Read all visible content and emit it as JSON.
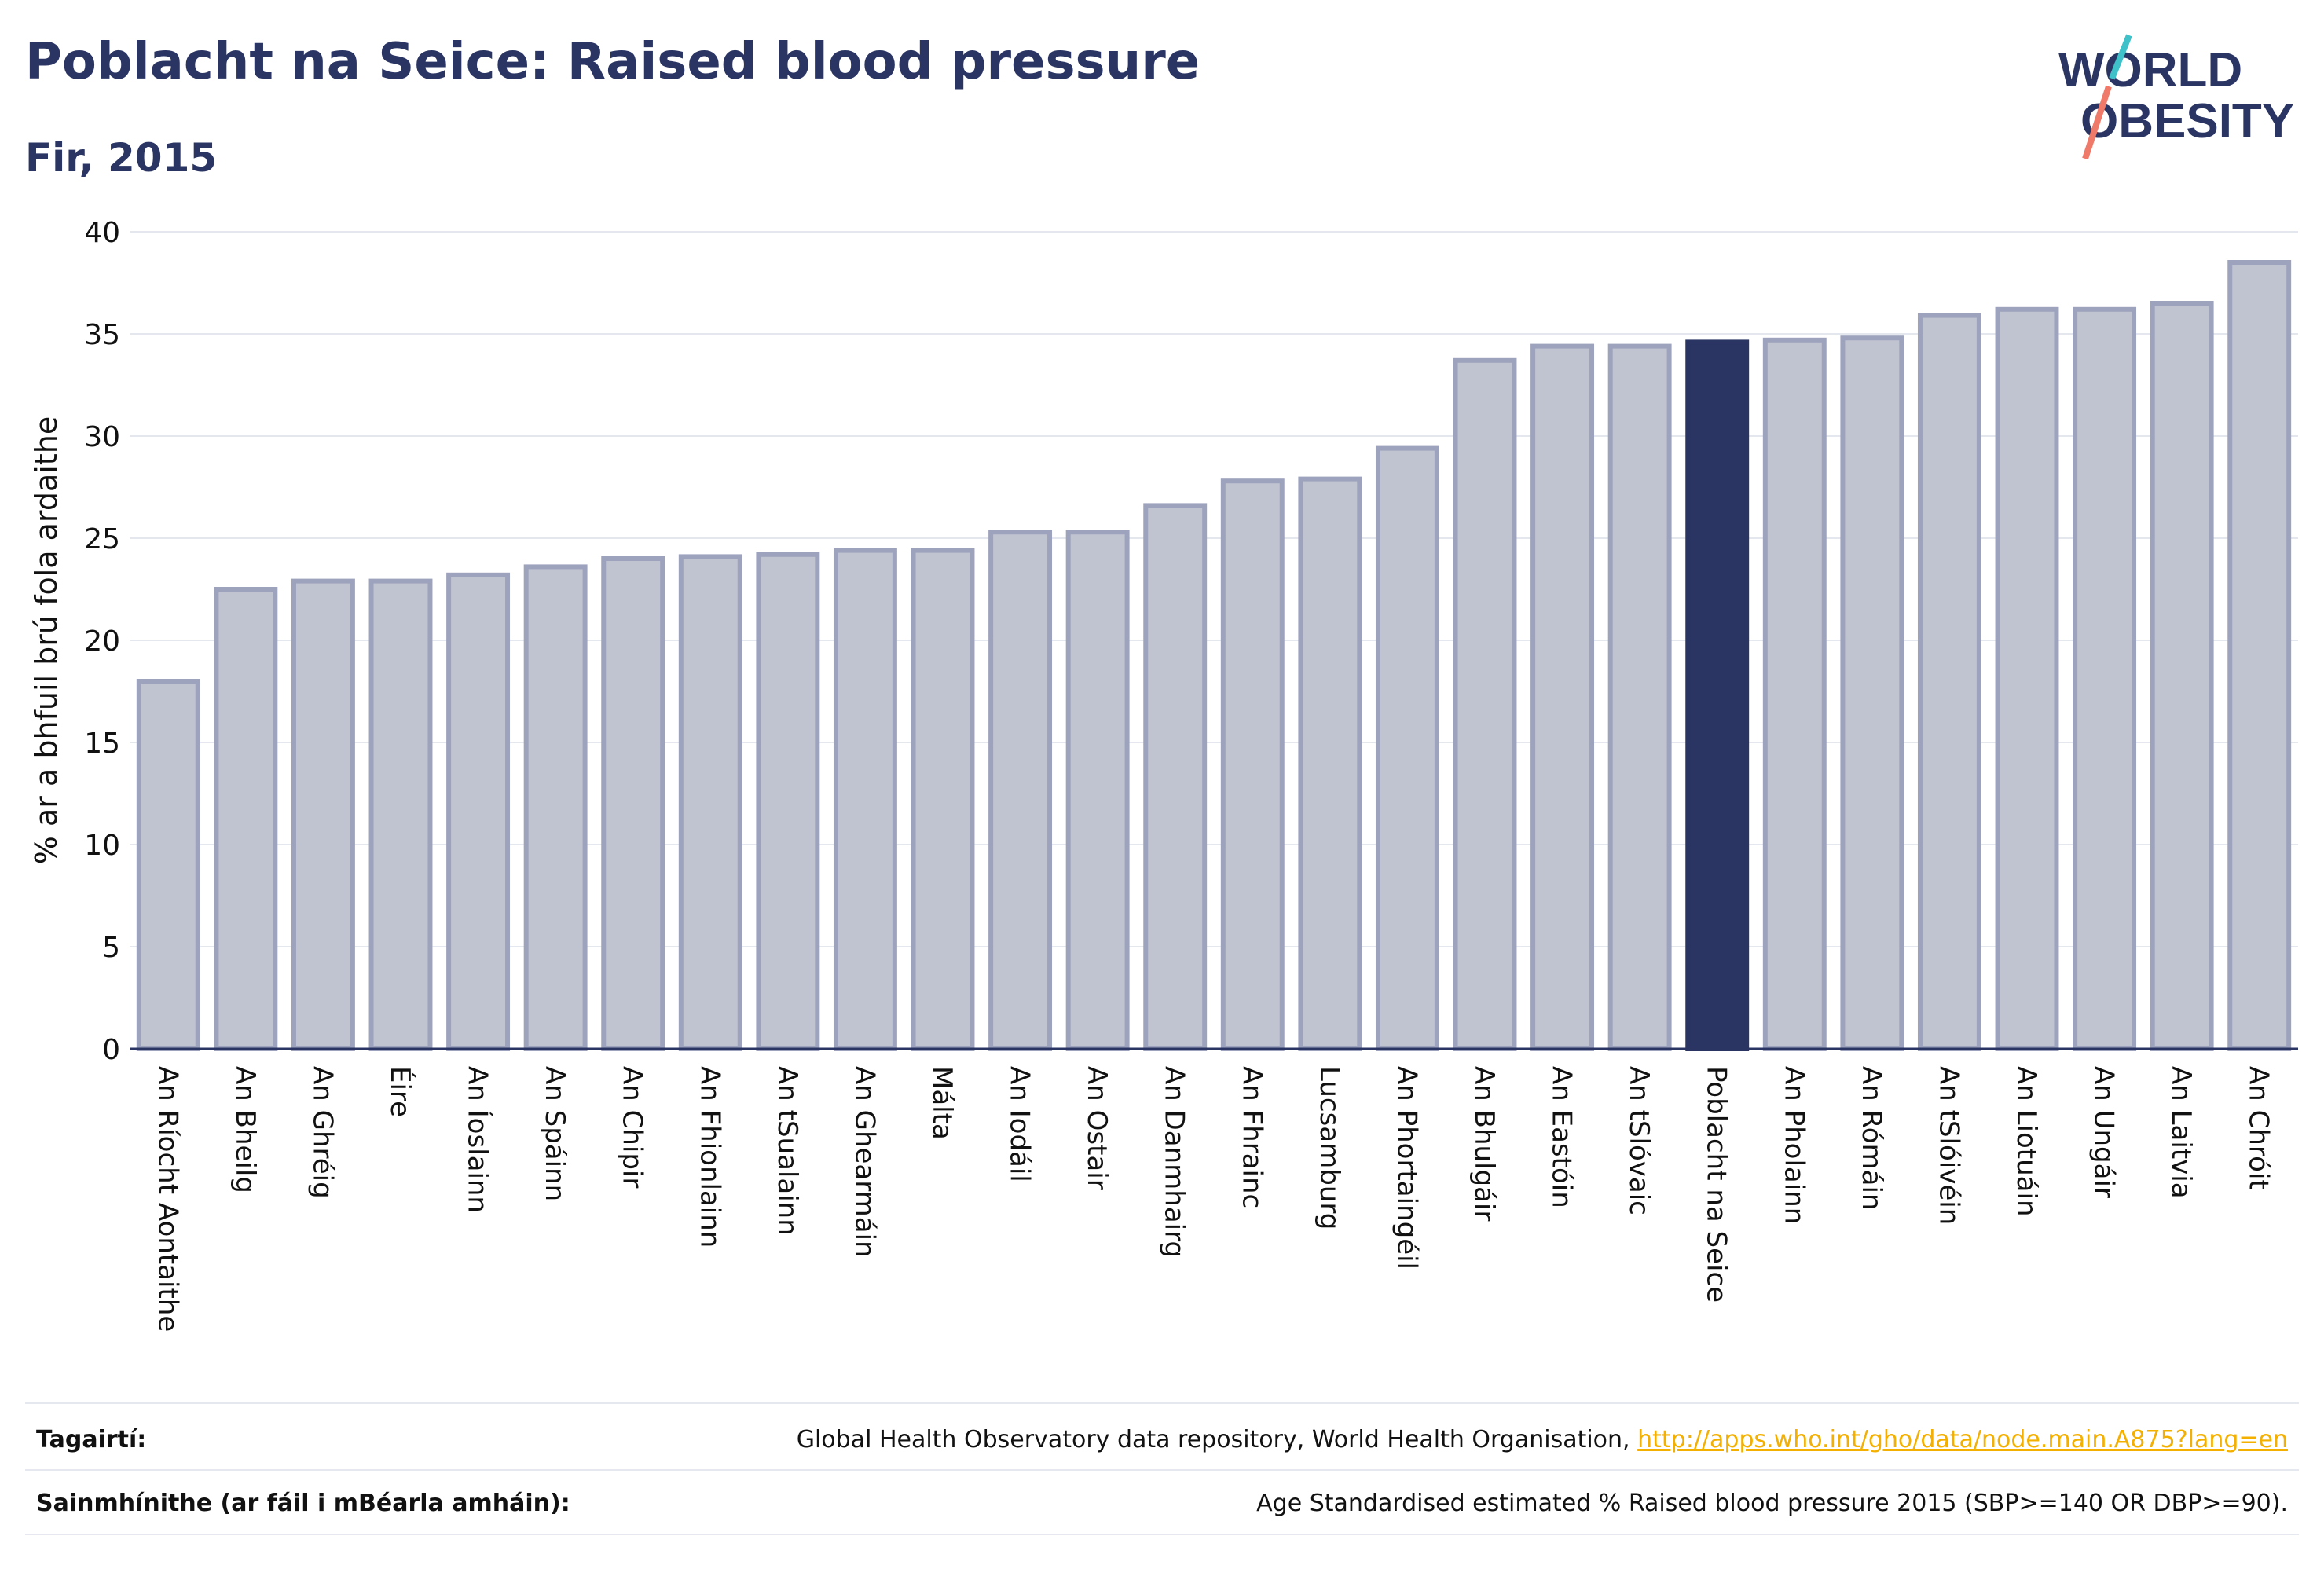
{
  "header": {
    "title": "Poblacht na Seice: Raised blood pressure",
    "subtitle": "Fir, 2015"
  },
  "logo": {
    "line1": "WORLD",
    "line2": "OBESITY"
  },
  "colors": {
    "bar": "#c0c3d0",
    "bar_edge": "#9ea3bd",
    "highlight": "#2a3563",
    "text": "#2a3563",
    "grid": "#e5e7ee"
  },
  "chart_data": {
    "type": "bar",
    "ylabel": "% ar a bhfuil brú fola ardaithe",
    "ylim": [
      0,
      40
    ],
    "yticks": [
      0,
      5,
      10,
      15,
      20,
      25,
      30,
      35,
      40
    ],
    "grid": true,
    "highlight": "Poblacht na Seice",
    "categories": [
      "An Ríocht Aontaithe",
      "An Bheilg",
      "An Ghréig",
      "Éire",
      "An Íoslainn",
      "An Spáinn",
      "An Chipir",
      "An Fhionlainn",
      "An tSualainn",
      "An Ghearmáin",
      "Málta",
      "An Iodáil",
      "An Ostair",
      "An Danmhairg",
      "An Fhrainc",
      "Lucsamburg",
      "An Phortaingéil",
      "An Bhulgáir",
      "An Eastóin",
      "An tSlóvaic",
      "Poblacht na Seice",
      "An Pholainn",
      "An Rómáin",
      "An tSlóivéin",
      "An Liotuáin",
      "An Ungáir",
      "An Laitvia",
      "An Chróit"
    ],
    "values": [
      18.0,
      22.5,
      22.9,
      22.9,
      23.2,
      23.6,
      24.0,
      24.1,
      24.2,
      24.4,
      24.4,
      25.3,
      25.3,
      26.6,
      27.8,
      27.9,
      29.4,
      33.7,
      34.4,
      34.4,
      34.6,
      34.7,
      34.8,
      35.9,
      36.2,
      36.2,
      36.5,
      38.5
    ]
  },
  "footer": {
    "references_label": "Tagairtí:",
    "references_text": "Global Health Observatory data repository, World Health Organisation,",
    "references_link": "http://apps.who.int/gho/data/node.main.A875?lang=en",
    "definitions_label": "Sainmhínithe (ar fáil i mBéarla amháin):",
    "definitions_text": "Age Standardised estimated % Raised blood pressure 2015 (SBP>=140 OR DBP>=90)."
  }
}
